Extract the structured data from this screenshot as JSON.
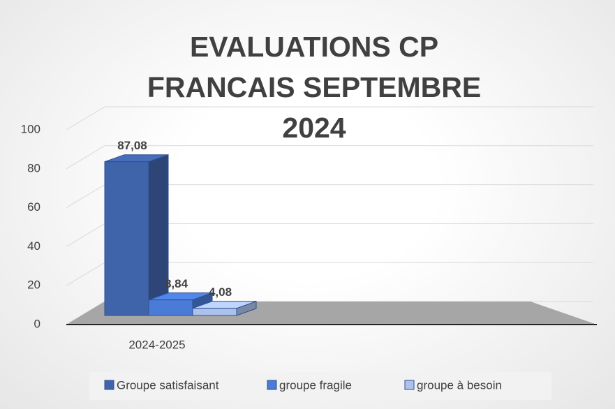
{
  "chart_data": {
    "type": "bar3d",
    "title": "EVALUATIONS CP FRANCAIS SEPTEMBRE 2024",
    "categories": [
      "2024-2025"
    ],
    "series": [
      {
        "name": "Groupe satisfaisant",
        "color": "#4064aa",
        "values": [
          87.08
        ],
        "value_labels": [
          "87,08"
        ]
      },
      {
        "name": "groupe fragile",
        "color": "#4a7bd6",
        "values": [
          8.84
        ],
        "value_labels": [
          "8,84"
        ]
      },
      {
        "name": "groupe à besoin",
        "color": "#adc2ea",
        "values": [
          4.08
        ],
        "value_labels": [
          "4,08"
        ]
      }
    ],
    "ylim": [
      0,
      100
    ],
    "yticks": [
      0,
      20,
      40,
      60,
      80,
      100
    ],
    "grid": true,
    "legend": "bottom"
  }
}
